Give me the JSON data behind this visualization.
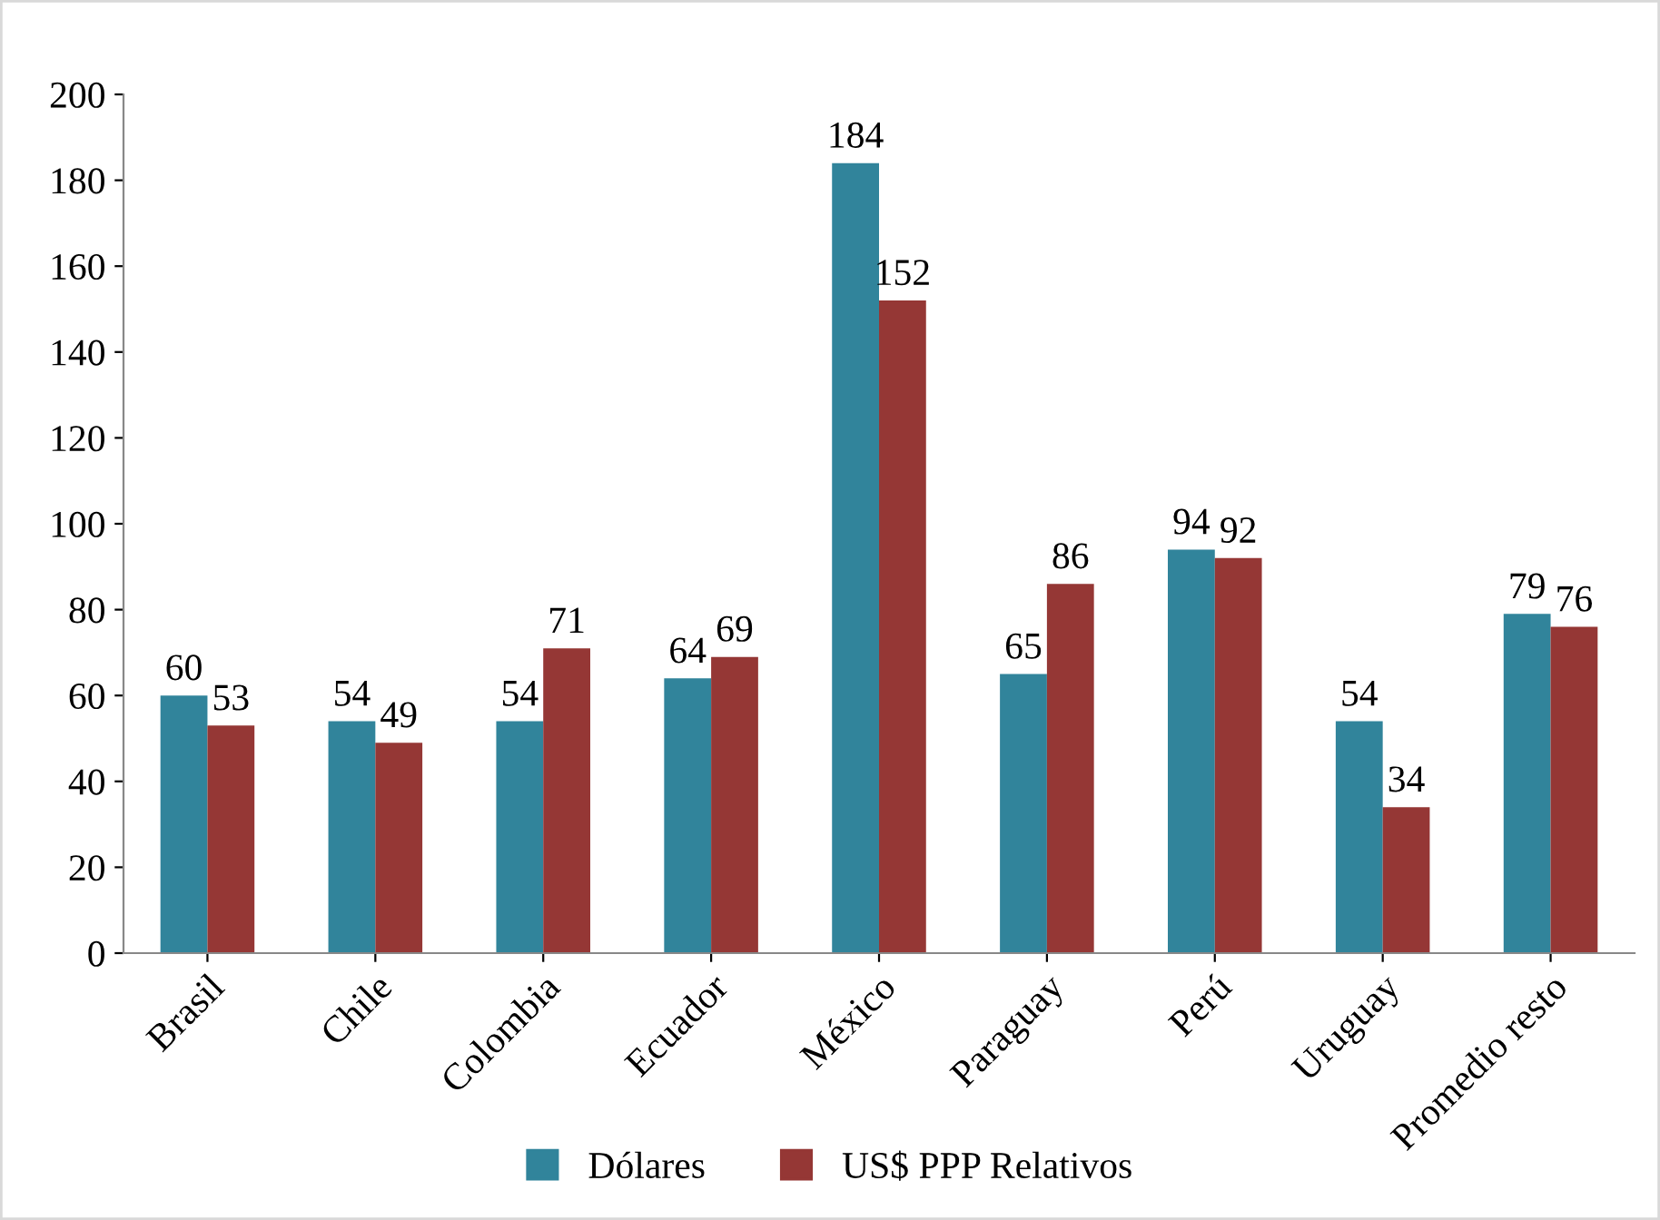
{
  "chart_data": {
    "type": "bar",
    "categories": [
      "Brasil",
      "Chile",
      "Colombia",
      "Ecuador",
      "México",
      "Paraguay",
      "Perú",
      "Uruguay",
      "Promedio resto"
    ],
    "series": [
      {
        "name": "Dólares",
        "color": "#31849b",
        "values": [
          60,
          54,
          54,
          64,
          184,
          65,
          94,
          54,
          79
        ]
      },
      {
        "name": "US$ PPP Relativos",
        "color": "#953735",
        "values": [
          53,
          49,
          71,
          69,
          152,
          86,
          92,
          34,
          76
        ]
      }
    ],
    "ylim": [
      0,
      200
    ],
    "yticks": [
      0,
      20,
      40,
      60,
      80,
      100,
      120,
      140,
      160,
      180,
      200
    ],
    "grid": false,
    "legend": "bottom",
    "data_labels": true
  }
}
